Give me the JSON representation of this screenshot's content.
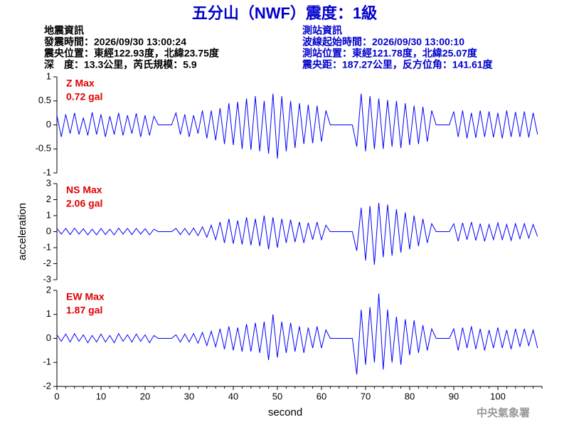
{
  "header": {
    "title": "五分山（NWF）震度：1級",
    "left": [
      "地震資訊",
      "發震時間：2026/09/30 13:00:24",
      "震央位置：東經122.93度，北緯23.75度",
      "深　度：13.3公里，芮氏規模：5.9"
    ],
    "right": [
      "測站資訊",
      "波線起始時間：2026/09/30 13:00:10",
      "測站位置：東經121.78度，北緯25.07度",
      "震央距：187.27公里，反方位角：141.61度"
    ],
    "footer": "中央氣象署"
  },
  "chart_data": [
    {
      "type": "line",
      "label": "Z Max",
      "max_label": "0.72 gal",
      "color": "#0000ff",
      "xlim": [
        0,
        110
      ],
      "ylim": [
        -1,
        1
      ],
      "yticks": [
        -1,
        -0.5,
        0,
        0.5,
        1
      ],
      "x": [
        0,
        1,
        2,
        3,
        4,
        5,
        6,
        7,
        8,
        9,
        10,
        11,
        12,
        13,
        14,
        15,
        16,
        17,
        18,
        19,
        20,
        21,
        22,
        23,
        24,
        25,
        26,
        27,
        28,
        29,
        30,
        31,
        32,
        33,
        34,
        35,
        36,
        37,
        38,
        39,
        40,
        41,
        42,
        43,
        44,
        45,
        46,
        47,
        48,
        49,
        50,
        51,
        52,
        53,
        54,
        55,
        56,
        57,
        58,
        59,
        60,
        61,
        62,
        63,
        64,
        65,
        66,
        67,
        68,
        69,
        70,
        71,
        72,
        73,
        74,
        75,
        76,
        77,
        78,
        79,
        80,
        81,
        82,
        83,
        84,
        85,
        86,
        87,
        88,
        89,
        90,
        91,
        92,
        93,
        94,
        95,
        96,
        97,
        98,
        99,
        100,
        101,
        102,
        103,
        104,
        105,
        106,
        107,
        108,
        109
      ],
      "values": [
        0.2,
        -0.25,
        0.22,
        -0.18,
        0.25,
        -0.2,
        0.15,
        -0.22,
        0.26,
        -0.2,
        0.22,
        -0.25,
        0.18,
        -0.2,
        0.25,
        -0.22,
        0.2,
        -0.18,
        0.24,
        -0.25,
        0.2,
        -0.22,
        0.18,
        0,
        0,
        0,
        0,
        0.25,
        -0.2,
        0.22,
        -0.25,
        0.2,
        -0.18,
        0.3,
        -0.28,
        0.3,
        -0.32,
        0.35,
        -0.4,
        0.45,
        -0.42,
        0.48,
        -0.5,
        0.55,
        -0.52,
        0.6,
        -0.55,
        0.5,
        -0.6,
        0.65,
        -0.7,
        0.6,
        -0.55,
        0.5,
        -0.48,
        0.45,
        -0.4,
        0.42,
        -0.38,
        0.4,
        -0.35,
        0.3,
        0,
        0,
        0,
        0,
        0,
        0,
        -0.45,
        0.65,
        -0.55,
        0.6,
        -0.5,
        0.55,
        -0.5,
        0.52,
        -0.45,
        0.5,
        -0.48,
        0.45,
        -0.42,
        0.4,
        -0.4,
        0.38,
        -0.35,
        0.3,
        0,
        0,
        0,
        0,
        0.28,
        -0.25,
        0.3,
        -0.28,
        0.25,
        -0.27,
        0.3,
        -0.25,
        0.28,
        -0.26,
        0.25,
        -0.28,
        0.3,
        -0.25,
        0.27,
        -0.25,
        0.28,
        -0.26,
        0.25,
        -0.2
      ]
    },
    {
      "type": "line",
      "label": "NS Max",
      "max_label": "2.06 gal",
      "ylabel": "acceleration",
      "color": "#0000ff",
      "xlim": [
        0,
        110
      ],
      "ylim": [
        -3,
        3
      ],
      "yticks": [
        -3,
        -2,
        -1,
        0,
        1,
        2,
        3
      ],
      "x": [
        0,
        1,
        2,
        3,
        4,
        5,
        6,
        7,
        8,
        9,
        10,
        11,
        12,
        13,
        14,
        15,
        16,
        17,
        18,
        19,
        20,
        21,
        22,
        23,
        24,
        25,
        26,
        27,
        28,
        29,
        30,
        31,
        32,
        33,
        34,
        35,
        36,
        37,
        38,
        39,
        40,
        41,
        42,
        43,
        44,
        45,
        46,
        47,
        48,
        49,
        50,
        51,
        52,
        53,
        54,
        55,
        56,
        57,
        58,
        59,
        60,
        61,
        62,
        63,
        64,
        65,
        66,
        67,
        68,
        69,
        70,
        71,
        72,
        73,
        74,
        75,
        76,
        77,
        78,
        79,
        80,
        81,
        82,
        83,
        84,
        85,
        86,
        87,
        88,
        89,
        90,
        91,
        92,
        93,
        94,
        95,
        96,
        97,
        98,
        99,
        100,
        101,
        102,
        103,
        104,
        105,
        106,
        107,
        108,
        109
      ],
      "values": [
        0.2,
        -0.15,
        0.2,
        -0.18,
        0.22,
        -0.15,
        0.18,
        -0.2,
        0.15,
        -0.2,
        0.2,
        -0.18,
        0.15,
        -0.2,
        0.22,
        -0.15,
        0.2,
        -0.18,
        0.2,
        -0.15,
        0.18,
        -0.2,
        0.15,
        0,
        0,
        0,
        0,
        0.2,
        -0.18,
        0.2,
        -0.2,
        0.22,
        -0.25,
        0.3,
        -0.35,
        0.4,
        -0.5,
        0.6,
        -0.7,
        0.8,
        -0.75,
        0.7,
        -0.8,
        0.9,
        -0.85,
        0.8,
        -0.9,
        1,
        -1.1,
        0.9,
        -1,
        0.8,
        -0.7,
        0.75,
        -0.65,
        0.6,
        -0.7,
        0.55,
        -0.5,
        0.6,
        -0.5,
        0.4,
        0,
        0,
        0,
        0,
        0,
        0,
        -1.2,
        1.5,
        -1.8,
        1.6,
        -2.06,
        1.8,
        -1.6,
        1.7,
        -1.5,
        1.4,
        -1.3,
        1.2,
        -1.1,
        1,
        -0.9,
        0.8,
        -0.7,
        0.5,
        0,
        0,
        0,
        0,
        0.5,
        -0.6,
        0.55,
        -0.5,
        0.6,
        -0.55,
        0.5,
        -0.6,
        0.45,
        -0.5,
        0.55,
        -0.5,
        0.45,
        -0.55,
        0.5,
        -0.45,
        0.5,
        -0.4,
        0.45,
        -0.3
      ]
    },
    {
      "type": "line",
      "label": "EW Max",
      "max_label": "1.87 gal",
      "xlabel": "second",
      "color": "#0000ff",
      "xlim": [
        0,
        110
      ],
      "ylim": [
        -2,
        2
      ],
      "yticks": [
        -2,
        -1,
        0,
        1,
        2
      ],
      "xticks": [
        0,
        10,
        20,
        30,
        40,
        50,
        60,
        70,
        80,
        90,
        100
      ],
      "x": [
        0,
        1,
        2,
        3,
        4,
        5,
        6,
        7,
        8,
        9,
        10,
        11,
        12,
        13,
        14,
        15,
        16,
        17,
        18,
        19,
        20,
        21,
        22,
        23,
        24,
        25,
        26,
        27,
        28,
        29,
        30,
        31,
        32,
        33,
        34,
        35,
        36,
        37,
        38,
        39,
        40,
        41,
        42,
        43,
        44,
        45,
        46,
        47,
        48,
        49,
        50,
        51,
        52,
        53,
        54,
        55,
        56,
        57,
        58,
        59,
        60,
        61,
        62,
        63,
        64,
        65,
        66,
        67,
        68,
        69,
        70,
        71,
        72,
        73,
        74,
        75,
        76,
        77,
        78,
        79,
        80,
        81,
        82,
        83,
        84,
        85,
        86,
        87,
        88,
        89,
        90,
        91,
        92,
        93,
        94,
        95,
        96,
        97,
        98,
        99,
        100,
        101,
        102,
        103,
        104,
        105,
        106,
        107,
        108,
        109
      ],
      "values": [
        0.15,
        -0.12,
        0.18,
        -0.15,
        0.2,
        -0.12,
        0.15,
        -0.18,
        0.12,
        -0.15,
        0.18,
        -0.15,
        0.12,
        -0.18,
        0.2,
        -0.12,
        0.15,
        -0.15,
        0.18,
        -0.12,
        0.15,
        -0.18,
        0.12,
        0,
        0,
        0,
        0,
        0.15,
        -0.15,
        0.18,
        -0.15,
        0.2,
        -0.2,
        0.25,
        -0.3,
        0.3,
        -0.35,
        0.4,
        -0.45,
        0.5,
        -0.5,
        0.45,
        -0.55,
        0.6,
        -0.55,
        0.65,
        -0.6,
        0.7,
        -0.9,
        1,
        -0.8,
        0.7,
        -0.6,
        0.65,
        -0.55,
        0.5,
        -0.6,
        0.45,
        -0.4,
        0.5,
        -0.4,
        0.35,
        0,
        0,
        0,
        0,
        0,
        0,
        -1.5,
        1.2,
        -1.1,
        1.3,
        -1,
        1.87,
        -1.3,
        1.2,
        -1,
        0.9,
        -1.1,
        0.8,
        -0.7,
        0.75,
        -0.6,
        0.55,
        -0.5,
        0.4,
        0,
        0,
        0,
        0,
        0.4,
        -0.5,
        0.45,
        -0.4,
        0.5,
        -0.45,
        0.4,
        -0.5,
        0.35,
        -0.4,
        0.45,
        -0.4,
        0.35,
        -0.45,
        0.4,
        -0.35,
        0.4,
        -0.3,
        0.35,
        -0.4
      ]
    }
  ]
}
